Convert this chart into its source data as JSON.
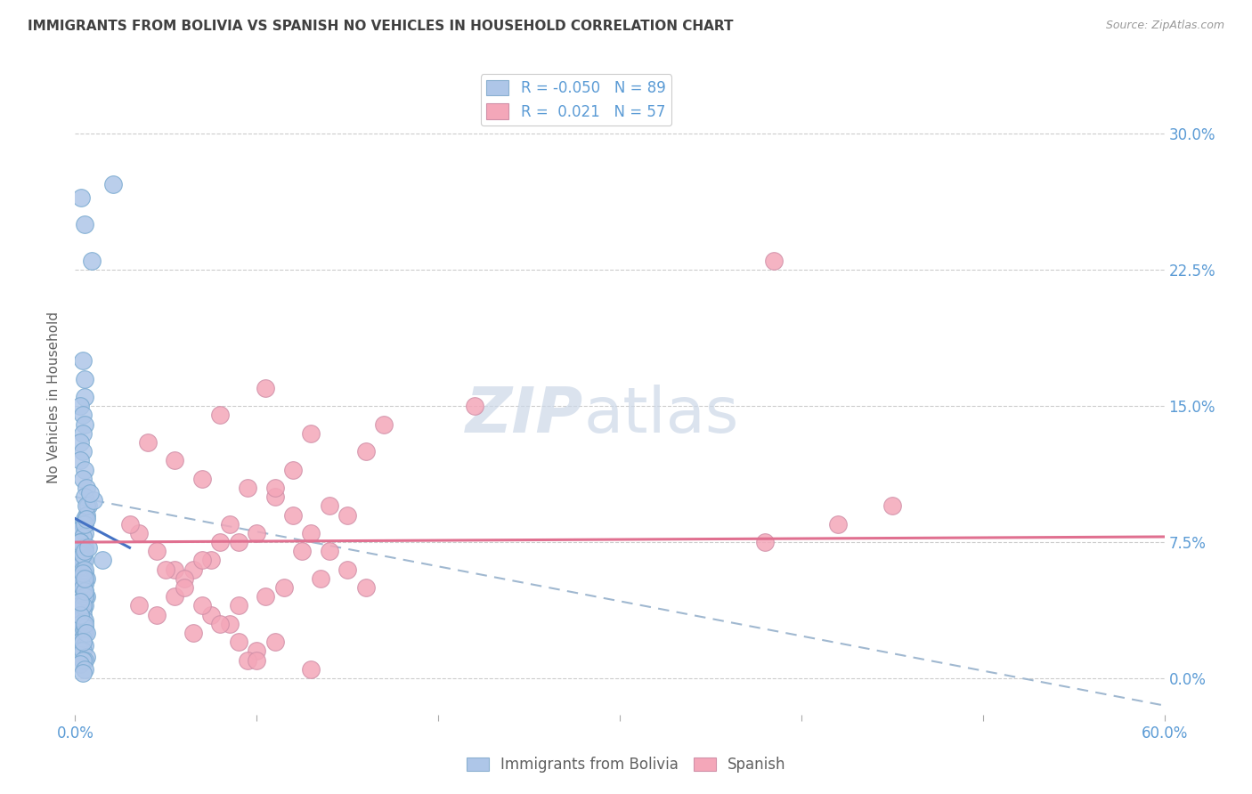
{
  "title": "IMMIGRANTS FROM BOLIVIA VS SPANISH NO VEHICLES IN HOUSEHOLD CORRELATION CHART",
  "source": "Source: ZipAtlas.com",
  "ylabel": "No Vehicles in Household",
  "ytick_vals": [
    0.0,
    7.5,
    15.0,
    22.5,
    30.0
  ],
  "xlim": [
    0.0,
    60.0
  ],
  "ylim": [
    -2.0,
    33.0
  ],
  "legend_label1": "Immigrants from Bolivia",
  "legend_label2": "Spanish",
  "R1": "-0.050",
  "N1": "89",
  "R2": " 0.021",
  "N2": "57",
  "color_blue": "#aec6e8",
  "color_pink": "#f4a7b9",
  "color_blue_line": "#4472c4",
  "color_pink_line": "#e07090",
  "color_blue_dash": "#a0b8d0",
  "title_color": "#404040",
  "axis_color": "#5b9bd5",
  "watermark_color": "#ccd8e8",
  "background_color": "#ffffff",
  "blue_scatter_x": [
    0.35,
    2.1,
    0.5,
    0.9,
    0.4,
    0.5,
    0.5,
    0.3,
    0.4,
    0.5,
    0.4,
    0.3,
    0.4,
    0.3,
    0.5,
    0.4,
    0.6,
    0.5,
    0.7,
    0.6,
    0.5,
    0.4,
    0.3,
    0.5,
    0.4,
    0.3,
    0.5,
    0.4,
    0.3,
    0.4,
    0.5,
    0.3,
    0.4,
    0.5,
    0.6,
    0.4,
    0.5,
    0.3,
    0.4,
    0.5,
    0.6,
    0.5,
    0.4,
    0.3,
    0.5,
    0.4,
    0.3,
    0.4,
    0.5,
    0.4,
    0.3,
    0.5,
    0.4,
    0.5,
    0.4,
    0.3,
    0.4,
    0.5,
    0.3,
    0.4,
    0.6,
    0.5,
    0.4,
    0.3,
    0.5,
    0.4,
    0.6,
    0.5,
    0.3,
    0.4,
    0.5,
    0.3,
    0.4,
    0.5,
    0.4,
    0.3,
    0.5,
    0.6,
    0.4,
    0.5,
    1.5,
    0.4,
    0.5,
    0.3,
    1.0,
    0.8,
    0.6,
    0.7,
    0.5
  ],
  "blue_scatter_y": [
    26.5,
    27.2,
    25.0,
    23.0,
    17.5,
    16.5,
    15.5,
    15.0,
    14.5,
    14.0,
    13.5,
    13.0,
    12.5,
    12.0,
    11.5,
    11.0,
    10.5,
    10.0,
    9.5,
    9.0,
    8.8,
    8.5,
    8.2,
    8.0,
    7.8,
    7.5,
    7.2,
    7.0,
    6.8,
    6.5,
    6.5,
    6.2,
    6.0,
    5.8,
    5.5,
    5.5,
    5.2,
    5.0,
    5.0,
    4.8,
    4.5,
    4.5,
    4.2,
    4.0,
    4.0,
    3.8,
    3.5,
    3.5,
    3.2,
    3.0,
    3.0,
    2.8,
    2.5,
    2.5,
    2.2,
    2.0,
    2.0,
    1.8,
    1.5,
    1.5,
    1.2,
    1.0,
    1.0,
    0.8,
    0.5,
    0.3,
    9.5,
    8.5,
    7.5,
    6.8,
    6.0,
    5.5,
    5.0,
    4.5,
    4.0,
    3.5,
    3.0,
    2.5,
    2.0,
    7.0,
    6.5,
    5.8,
    4.8,
    4.2,
    9.8,
    10.2,
    8.8,
    7.2,
    5.5
  ],
  "pink_scatter_x": [
    38.5,
    10.5,
    8.0,
    17.0,
    22.0,
    13.0,
    16.0,
    12.0,
    7.0,
    9.5,
    11.0,
    14.0,
    15.0,
    8.5,
    10.0,
    9.0,
    12.5,
    7.5,
    6.5,
    13.5,
    11.5,
    3.5,
    4.5,
    5.5,
    4.0,
    6.5,
    10.5,
    9.0,
    8.5,
    7.5,
    11.0,
    10.0,
    9.5,
    13.0,
    8.0,
    7.0,
    6.0,
    5.5,
    3.0,
    42.0,
    45.0,
    3.5,
    5.0,
    6.0,
    7.0,
    8.0,
    9.0,
    10.0,
    11.0,
    12.0,
    13.0,
    14.0,
    15.0,
    16.0,
    4.5,
    5.5,
    38.0
  ],
  "pink_scatter_y": [
    23.0,
    16.0,
    14.5,
    14.0,
    15.0,
    13.5,
    12.5,
    11.5,
    11.0,
    10.5,
    10.0,
    9.5,
    9.0,
    8.5,
    8.0,
    7.5,
    7.0,
    6.5,
    6.0,
    5.5,
    5.0,
    8.0,
    7.0,
    6.0,
    13.0,
    2.5,
    4.5,
    4.0,
    3.0,
    3.5,
    2.0,
    1.5,
    1.0,
    0.5,
    7.5,
    6.5,
    5.5,
    4.5,
    8.5,
    8.5,
    9.5,
    4.0,
    6.0,
    5.0,
    4.0,
    3.0,
    2.0,
    1.0,
    10.5,
    9.0,
    8.0,
    7.0,
    6.0,
    5.0,
    3.5,
    12.0,
    7.5
  ],
  "blue_line_x0": 0.0,
  "blue_line_y0": 8.8,
  "blue_line_x1": 3.0,
  "blue_line_y1": 7.2,
  "pink_line_x0": 0.0,
  "pink_line_y0": 7.5,
  "pink_line_x1": 60.0,
  "pink_line_y1": 7.8,
  "dash_line_x0": 0.0,
  "dash_line_y0": 10.0,
  "dash_line_x1": 60.0,
  "dash_line_y1": -1.5
}
